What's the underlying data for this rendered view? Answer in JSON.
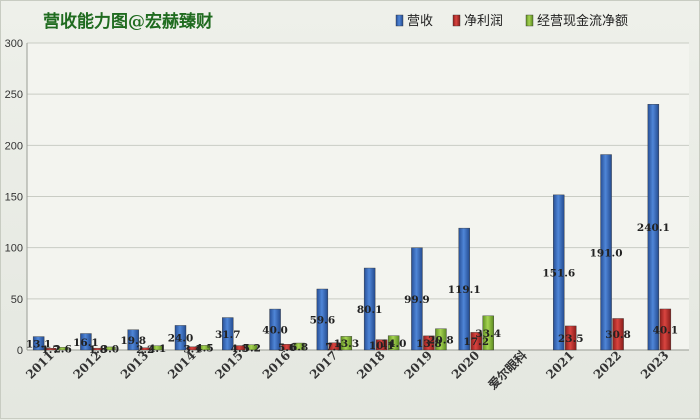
{
  "chart_data": {
    "type": "bar",
    "title": "营收能力图@宏赫臻财",
    "xlabel": "",
    "ylabel": "",
    "categories": [
      "2011",
      "2012",
      "2013",
      "2014",
      "2015",
      "2016",
      "2017",
      "2018",
      "2019",
      "2020",
      "爱尔眼科",
      "2021",
      "2022",
      "2023"
    ],
    "series": [
      {
        "name": "营收",
        "color": "#3b6fc4",
        "values": [
          13.1,
          16.1,
          19.8,
          24.0,
          31.7,
          40.0,
          59.6,
          80.1,
          99.9,
          119.1,
          null,
          151.6,
          191.0,
          240.1
        ],
        "labels": [
          "13.1",
          "16.1",
          "19.8",
          "24.0",
          "31.7",
          "40.0",
          "59.6",
          "80.1",
          "99.9",
          "119.1",
          "",
          "151.6",
          "191.0",
          "240.1"
        ]
      },
      {
        "name": "净利润",
        "color": "#c8322f",
        "values": [
          1.7,
          1.8,
          2.2,
          3.1,
          4.3,
          5.6,
          7.1,
          10.1,
          13.8,
          17.2,
          null,
          23.5,
          30.8,
          40.1
        ],
        "labels": [
          "1.7",
          "1.8",
          "2.2",
          "3.1",
          "4.3",
          "5.6",
          "7.1",
          "10.1",
          "13.8",
          "17.2",
          "",
          "23.5",
          "30.8",
          "40.1"
        ]
      },
      {
        "name": "经营现金流净额",
        "color": "#8fc23a",
        "values": [
          2.6,
          3.0,
          4.1,
          4.5,
          5.2,
          6.8,
          13.3,
          14.0,
          20.8,
          33.4,
          null,
          null,
          null,
          null
        ],
        "labels": [
          "2.6",
          "3.0",
          "4.1",
          "4.5",
          "5.2",
          "6.8",
          "13.3",
          "14.0",
          "20.8",
          "33.4",
          "",
          "",
          "",
          ""
        ]
      }
    ],
    "ylim": [
      0,
      300
    ],
    "yticks": [
      0,
      50,
      100,
      150,
      200,
      250,
      300
    ],
    "grid": true,
    "legend_position": "top-right"
  }
}
